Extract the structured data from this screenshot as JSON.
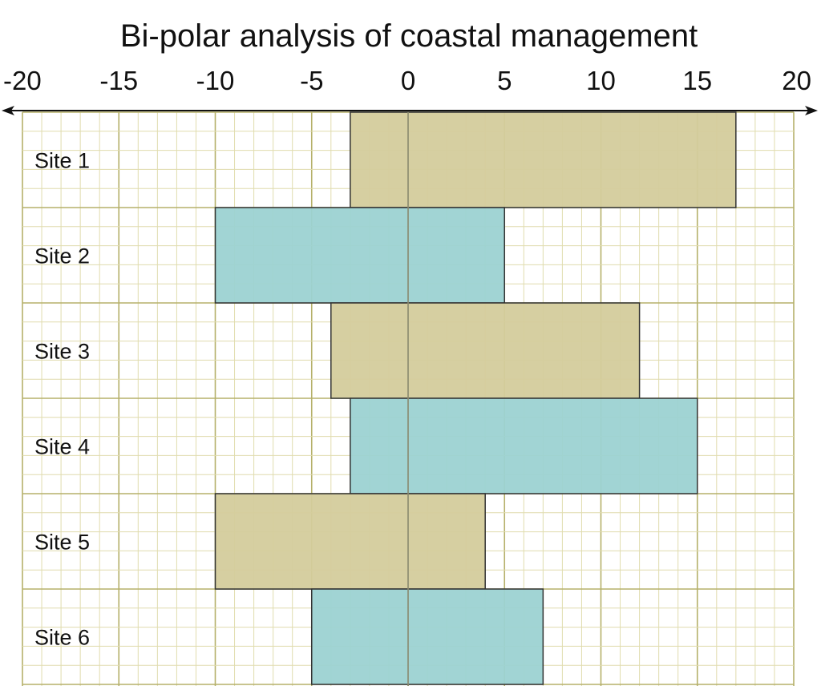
{
  "chart_data": {
    "type": "bar",
    "orientation": "horizontal",
    "title": "Bi-polar analysis of coastal management",
    "xlabel": "",
    "ylabel": "",
    "xlim": [
      -20,
      20
    ],
    "x_ticks": [
      "-20",
      "-15",
      "-10",
      "-5",
      "0",
      "5",
      "10",
      "15",
      "20"
    ],
    "x_tick_values": [
      -20,
      -15,
      -10,
      -5,
      0,
      5,
      10,
      15,
      20
    ],
    "axis_position": "top",
    "grid": true,
    "categories": [
      "Site 1",
      "Site 2",
      "Site 3",
      "Site 4",
      "Site 5",
      "Site 6"
    ],
    "ranges": [
      [
        -3,
        17
      ],
      [
        -10,
        5
      ],
      [
        -4,
        12
      ],
      [
        -3,
        15
      ],
      [
        -10,
        4
      ],
      [
        -5,
        7
      ]
    ],
    "bar_colors": [
      "#d4cc9c",
      "#9cd2d2",
      "#d4cc9c",
      "#9cd2d2",
      "#d4cc9c",
      "#9cd2d2"
    ],
    "colors": {
      "grid_major": "#b5b06a",
      "grid_minor": "#e0dcae",
      "bar_outline": "#333333",
      "axis": "#111111"
    }
  }
}
